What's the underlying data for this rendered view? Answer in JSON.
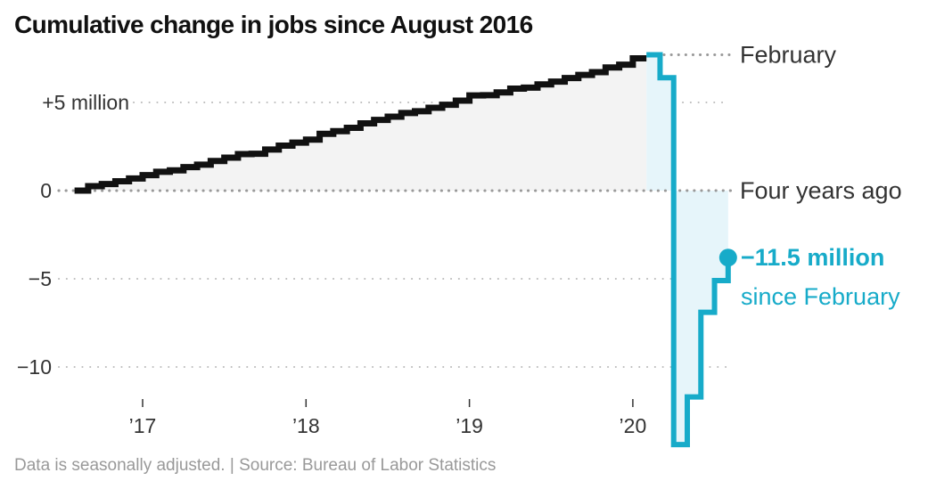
{
  "chart_data": {
    "type": "line",
    "title": "Cumulative change in jobs since August 2016",
    "footer": "Data is seasonally adjusted. | Source: Bureau of Labor Statistics",
    "y_unit": "million",
    "ylim": [
      -14.5,
      7.8
    ],
    "y_ticks": [
      {
        "value": 5,
        "label": "+5 million"
      },
      {
        "value": 0,
        "label": "0"
      },
      {
        "value": -5,
        "label": "−5"
      },
      {
        "value": -10,
        "label": "−10"
      }
    ],
    "x_ticks": [
      {
        "value": 2017,
        "label": "’17"
      },
      {
        "value": 2018,
        "label": "’18"
      },
      {
        "value": 2019,
        "label": "’19"
      },
      {
        "value": 2020,
        "label": "’20"
      }
    ],
    "grid": true,
    "colors": {
      "before": "#111111",
      "after": "#17abc9",
      "before_fill": "#f3f3f3",
      "after_fill": "#e6f5fa"
    },
    "series": [
      {
        "start": "2016-08",
        "values": [
          0,
          0.25,
          0.37,
          0.53,
          0.69,
          0.88,
          1.07,
          1.15,
          1.33,
          1.47,
          1.68,
          1.87,
          2.07,
          2.09,
          2.33,
          2.55,
          2.72,
          2.89,
          3.22,
          3.37,
          3.56,
          3.81,
          4.01,
          4.19,
          4.4,
          4.5,
          4.7,
          4.87,
          5.1,
          5.4,
          5.41,
          5.57,
          5.78,
          5.84,
          6.02,
          6.18,
          6.38,
          6.56,
          6.72,
          6.98,
          7.14,
          7.5
        ]
      },
      {
        "start": "2020-02",
        "values": [
          7.7,
          6.4,
          -14.4,
          -11.7,
          -6.9,
          -5.1,
          -3.8
        ]
      }
    ],
    "annotations": {
      "february": "February",
      "four_years_ago": "Four years ago",
      "change_value": "−11.5 million",
      "change_label": "since February"
    }
  }
}
